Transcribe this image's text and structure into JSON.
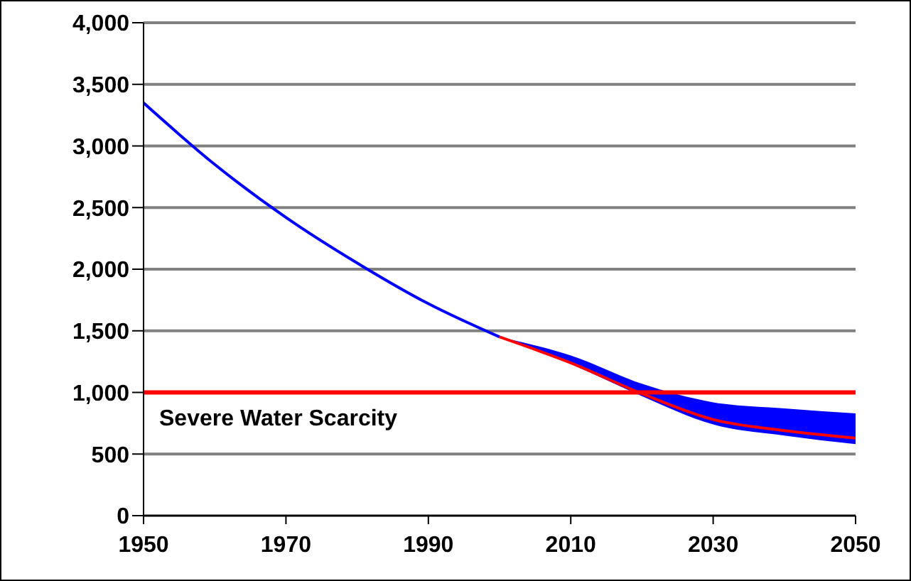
{
  "chart_data": {
    "type": "line",
    "x": [
      1950,
      1960,
      1970,
      1980,
      1990,
      2000,
      2010,
      2020,
      2030,
      2040,
      2050
    ],
    "series": [
      {
        "color": "#0000ff",
        "values": [
          3350,
          2850,
          2420,
          2050,
          1720,
          1450,
          null,
          null,
          null,
          null,
          null
        ],
        "lower": [
          null,
          null,
          null,
          null,
          null,
          1450,
          1230,
          970,
          740,
          650,
          580
        ],
        "upper": [
          null,
          null,
          null,
          null,
          null,
          1450,
          1300,
          1070,
          920,
          870,
          830
        ]
      },
      {
        "color": "#ff0000",
        "values": [
          null,
          null,
          null,
          null,
          null,
          1450,
          1240,
          990,
          780,
          690,
          630
        ]
      }
    ],
    "xlim": [
      1950,
      2050
    ],
    "xticks": [
      1950,
      1970,
      1990,
      2010,
      2030,
      2050
    ],
    "ylim": [
      0,
      4000
    ],
    "yticks": [
      0,
      500,
      {
        "value": 1000,
        "label": "1,000"
      },
      {
        "value": 1500,
        "label": "1,500"
      },
      {
        "value": 2000,
        "label": "2,000"
      },
      {
        "value": 2500,
        "label": "2,500"
      },
      {
        "value": 3000,
        "label": "3,000"
      },
      {
        "value": 3500,
        "label": "3,500"
      },
      {
        "value": 4000,
        "label": "4,000"
      }
    ],
    "grid": "y",
    "legend": false,
    "marker": "none",
    "line_style": "solid",
    "ref_lines": [
      {
        "axis": "y",
        "value": 1000,
        "label": "Severe Water Scarcity",
        "color": "#ff0000"
      }
    ]
  }
}
